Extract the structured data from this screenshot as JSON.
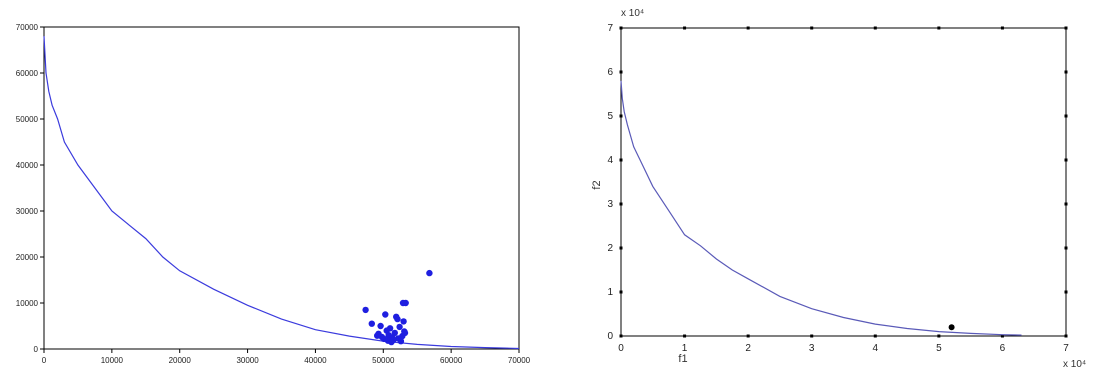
{
  "chart_data": [
    {
      "type": "scatter",
      "xlim": [
        0,
        70000
      ],
      "ylim": [
        0,
        70000
      ],
      "xticks": [
        "0",
        "10000",
        "20000",
        "30000",
        "40000",
        "50000",
        "60000",
        "70000"
      ],
      "yticks": [
        "0",
        "10000",
        "20000",
        "30000",
        "40000",
        "50000",
        "60000",
        "70000"
      ],
      "grid": false,
      "series": [
        {
          "kind": "line",
          "color": "#3b3bdd",
          "x": [
            0,
            300,
            700,
            1200,
            2000,
            3000,
            5000,
            7500,
            10000,
            12500,
            15000,
            17500,
            20000,
            25000,
            30000,
            35000,
            40000,
            45000,
            50000,
            55000,
            60000,
            65000,
            68000,
            70000
          ],
          "y": [
            68000,
            60000,
            56000,
            53000,
            50000,
            45000,
            40000,
            35000,
            30000,
            27000,
            24000,
            20000,
            17000,
            13000,
            9500,
            6500,
            4200,
            2800,
            1700,
            1000,
            550,
            300,
            200,
            100
          ]
        },
        {
          "kind": "scatter",
          "color": "#1f1fe0",
          "x": [
            56800,
            53300,
            52900,
            47400,
            50300,
            51900,
            48300,
            49600,
            52100,
            53000,
            51000,
            50500,
            52400,
            51700,
            53100,
            49300,
            50800,
            52800,
            51300,
            50100,
            52200,
            53200,
            49800,
            51500,
            50700,
            52600,
            49100,
            51200
          ],
          "y": [
            16500,
            10000,
            10000,
            8500,
            7500,
            7000,
            5500,
            5000,
            6500,
            6000,
            4500,
            4000,
            4800,
            3500,
            3800,
            3300,
            3000,
            2800,
            2500,
            2200,
            2300,
            3500,
            2600,
            2000,
            1800,
            1700,
            2900,
            1500
          ]
        }
      ]
    },
    {
      "type": "scatter",
      "xlabel": "f1",
      "ylabel": "f2",
      "xlim": [
        0,
        7
      ],
      "ylim": [
        0,
        7
      ],
      "x_multiplier": "x 10⁴",
      "y_multiplier": "x 10⁴",
      "xticks": [
        "0",
        "1",
        "2",
        "3",
        "4",
        "5",
        "6",
        "7"
      ],
      "yticks": [
        "0",
        "1",
        "2",
        "3",
        "4",
        "5",
        "6",
        "7"
      ],
      "grid": false,
      "series": [
        {
          "kind": "line",
          "color": "#5a5ab8",
          "x": [
            0,
            0.02,
            0.05,
            0.1,
            0.2,
            0.3,
            0.5,
            0.75,
            1.0,
            1.25,
            1.5,
            1.75,
            2.0,
            2.5,
            3.0,
            3.5,
            4.0,
            4.5,
            5.0,
            5.5,
            6.0,
            6.3
          ],
          "y": [
            5.8,
            5.4,
            5.1,
            4.8,
            4.3,
            4.0,
            3.4,
            2.85,
            2.3,
            2.05,
            1.75,
            1.5,
            1.3,
            0.9,
            0.62,
            0.42,
            0.27,
            0.17,
            0.1,
            0.06,
            0.03,
            0.02
          ]
        },
        {
          "kind": "scatter",
          "color": "#000000",
          "x": [
            5.2
          ],
          "y": [
            0.2
          ]
        }
      ]
    }
  ]
}
